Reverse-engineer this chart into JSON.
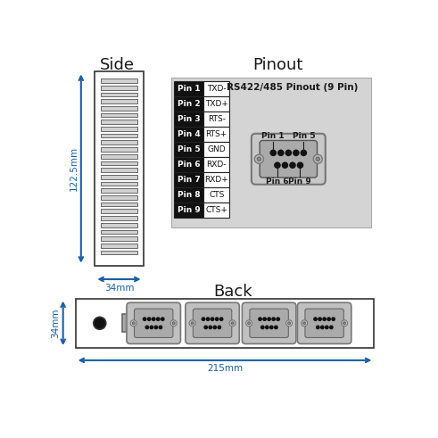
{
  "title_side": "Side",
  "title_pinout": "Pinout",
  "title_back": "Back",
  "pinout_title": "RS422/485 Pinout (9 Pin)",
  "dim_side_height": "122.5mm",
  "dim_side_width": "34mm",
  "dim_back_height": "34mm",
  "dim_back_width": "215mm",
  "pin_labels": [
    "Pin 1",
    "Pin 2",
    "Pin 3",
    "Pin 4",
    "Pin 5",
    "Pin 6",
    "Pin 7",
    "Pin 8",
    "Pin 9"
  ],
  "pin_signals": [
    "TXD-",
    "TXD+",
    "RTS-",
    "RTS+",
    "GND",
    "RXD-",
    "RXD+",
    "CTS",
    "CTS+"
  ],
  "bg_color": "#ffffff",
  "pinout_bg": "#d4d4d4",
  "blue_color": "#1a5fa8",
  "dark_color": "#1a1a1a",
  "n_slots": 26
}
